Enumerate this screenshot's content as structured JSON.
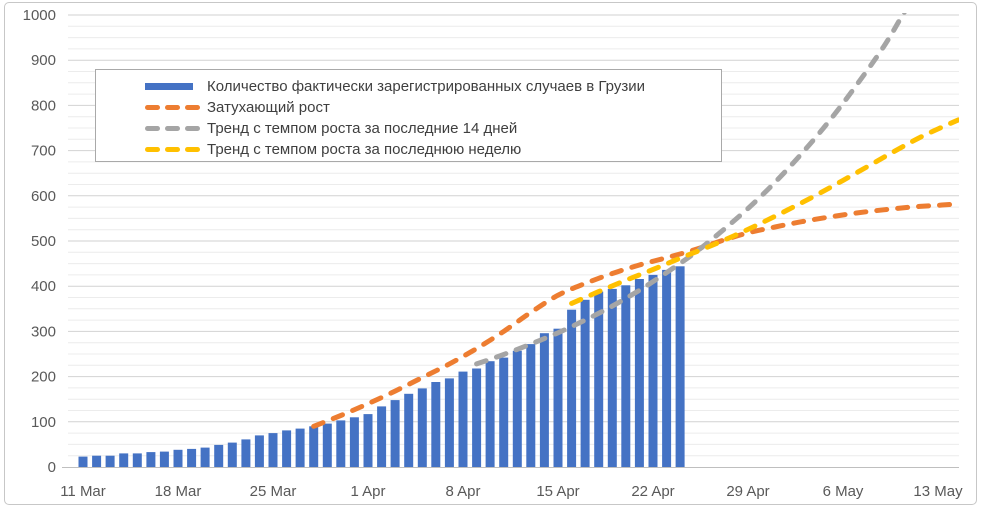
{
  "chart_data": {
    "type": "bar+line",
    "title": "",
    "legend_position": "inside-top-left",
    "grid": "horizontal major and minor gridlines",
    "x_axis": {
      "ticks": [
        {
          "label": "11 Mar",
          "day": 0
        },
        {
          "label": "18 Mar",
          "day": 7
        },
        {
          "label": "25 Mar",
          "day": 14
        },
        {
          "label": "1 Apr",
          "day": 21
        },
        {
          "label": "8 Apr",
          "day": 28
        },
        {
          "label": "15 Apr",
          "day": 35
        },
        {
          "label": "22 Apr",
          "day": 42
        },
        {
          "label": "29 Apr",
          "day": 49
        },
        {
          "label": "6 May",
          "day": 56
        },
        {
          "label": "13 May",
          "day": 63
        }
      ]
    },
    "y_axis": {
      "min": 0,
      "max": 1000,
      "major_step": 100,
      "minor_step": 25,
      "tick_labels": [
        "0",
        "100",
        "200",
        "300",
        "400",
        "500",
        "600",
        "700",
        "800",
        "900",
        "1000"
      ]
    },
    "bar_series": {
      "label": "Количество фактически зарегистрированных случаев в Грузии",
      "color": "#4472C4",
      "dates": [
        "11 Mar",
        "12 Mar",
        "13 Mar",
        "14 Mar",
        "15 Mar",
        "16 Mar",
        "17 Mar",
        "18 Mar",
        "19 Mar",
        "20 Mar",
        "21 Mar",
        "22 Mar",
        "23 Mar",
        "24 Mar",
        "25 Mar",
        "26 Mar",
        "27 Mar",
        "28 Mar",
        "29 Mar",
        "30 Mar",
        "31 Mar",
        "1 Apr",
        "2 Apr",
        "3 Apr",
        "4 Apr",
        "5 Apr",
        "6 Apr",
        "7 Apr",
        "8 Apr",
        "9 Apr",
        "10 Apr",
        "11 Apr",
        "12 Apr",
        "13 Apr",
        "14 Apr",
        "15 Apr",
        "16 Apr",
        "17 Apr",
        "18 Apr",
        "19 Apr",
        "20 Apr",
        "21 Apr",
        "22 Apr",
        "23 Apr",
        "24 Apr"
      ],
      "values": [
        23,
        25,
        25,
        30,
        30,
        33,
        34,
        38,
        40,
        43,
        49,
        54,
        61,
        70,
        75,
        81,
        85,
        90,
        96,
        103,
        110,
        117,
        134,
        148,
        162,
        174,
        188,
        196,
        211,
        218,
        234,
        242,
        257,
        272,
        296,
        306,
        348,
        370,
        388,
        394,
        402,
        416,
        425,
        436,
        444
      ]
    },
    "line_series": [
      {
        "label": "Затухающий рост",
        "color": "#ED7D31",
        "style": "dashed",
        "points": [
          [
            17,
            90
          ],
          [
            19,
            114
          ],
          [
            21,
            140
          ],
          [
            23,
            168
          ],
          [
            25,
            198
          ],
          [
            27,
            228
          ],
          [
            29,
            262
          ],
          [
            31,
            300
          ],
          [
            33,
            342
          ],
          [
            35,
            380
          ],
          [
            37,
            406
          ],
          [
            39,
            428
          ],
          [
            41,
            447
          ],
          [
            43,
            463
          ],
          [
            45,
            480
          ],
          [
            47,
            500
          ],
          [
            49,
            518
          ],
          [
            51,
            531
          ],
          [
            53,
            543
          ],
          [
            55,
            553
          ],
          [
            57,
            562
          ],
          [
            59,
            569
          ],
          [
            61,
            575
          ],
          [
            63,
            579
          ],
          [
            64.5,
            582
          ]
        ]
      },
      {
        "label": "Тренд с темпом роста за последние 14 дней",
        "color": "#A5A5A5",
        "style": "dashed",
        "points": [
          [
            29,
            228
          ],
          [
            31,
            249
          ],
          [
            33,
            272
          ],
          [
            35,
            297
          ],
          [
            37,
            325
          ],
          [
            39,
            356
          ],
          [
            41,
            391
          ],
          [
            43,
            430
          ],
          [
            45,
            472
          ],
          [
            47,
            520
          ],
          [
            49,
            572
          ],
          [
            51,
            630
          ],
          [
            53,
            695
          ],
          [
            55,
            766
          ],
          [
            57,
            845
          ],
          [
            59,
            930
          ],
          [
            60.5,
            1005
          ],
          [
            61.5,
            1050
          ]
        ]
      },
      {
        "label": "Тренд с темпом роста за последнюю неделю",
        "color": "#FFC000",
        "style": "dashed",
        "points": [
          [
            36,
            362
          ],
          [
            38,
            388
          ],
          [
            40,
            413
          ],
          [
            42,
            437
          ],
          [
            44,
            462
          ],
          [
            46,
            486
          ],
          [
            48,
            512
          ],
          [
            50,
            540
          ],
          [
            52,
            570
          ],
          [
            54,
            601
          ],
          [
            56,
            634
          ],
          [
            58,
            668
          ],
          [
            60,
            702
          ],
          [
            62,
            734
          ],
          [
            64.5,
            768
          ]
        ]
      }
    ]
  }
}
